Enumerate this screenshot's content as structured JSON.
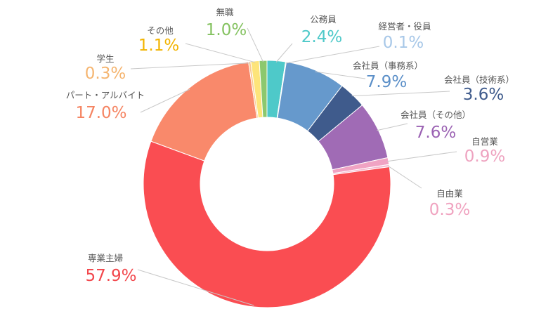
{
  "chart_data": {
    "type": "pie",
    "donut": true,
    "unit": "%",
    "slices": [
      {
        "name": "公務員",
        "value": 2.4,
        "value_label": "2.4%",
        "color": "#4ec9c9",
        "text_color": "#4ec9c9"
      },
      {
        "name": "経営者・役員",
        "value": 0.1,
        "value_label": "0.1%",
        "color": "#a8d0f0",
        "text_color": "#a8c8e8"
      },
      {
        "name": "会社員（事務系）",
        "value": 7.9,
        "value_label": "7.9%",
        "color": "#6699cc",
        "text_color": "#5b8fc8"
      },
      {
        "name": "会社員（技術系）",
        "value": 3.6,
        "value_label": "3.6%",
        "color": "#3f5b8c",
        "text_color": "#3f5b8c"
      },
      {
        "name": "会社員（その他）",
        "value": 7.6,
        "value_label": "7.6%",
        "color": "#a06bb5",
        "text_color": "#9b62b3"
      },
      {
        "name": "自営業",
        "value": 0.9,
        "value_label": "0.9%",
        "color": "#f0a3c3",
        "text_color": "#eea3c0"
      },
      {
        "name": "自由業",
        "value": 0.3,
        "value_label": "0.3%",
        "color": "#f5b8d0",
        "text_color": "#f0a3c0"
      },
      {
        "name": "専業主婦",
        "value": 57.9,
        "value_label": "57.9%",
        "color": "#fa4d52",
        "text_color": "#f2474c"
      },
      {
        "name": "パート・アルバイト",
        "value": 17.0,
        "value_label": "17.0%",
        "color": "#f9896b",
        "text_color": "#f58462"
      },
      {
        "name": "学生",
        "value": 0.3,
        "value_label": "0.3%",
        "color": "#f8ca92",
        "text_color": "#f5b570"
      },
      {
        "name": "その他",
        "value": 1.1,
        "value_label": "1.1%",
        "color": "#fde47a",
        "text_color": "#f2b400"
      },
      {
        "name": "無職",
        "value": 1.0,
        "value_label": "1.0%",
        "color": "#8cc86e",
        "text_color": "#84c260"
      }
    ]
  }
}
